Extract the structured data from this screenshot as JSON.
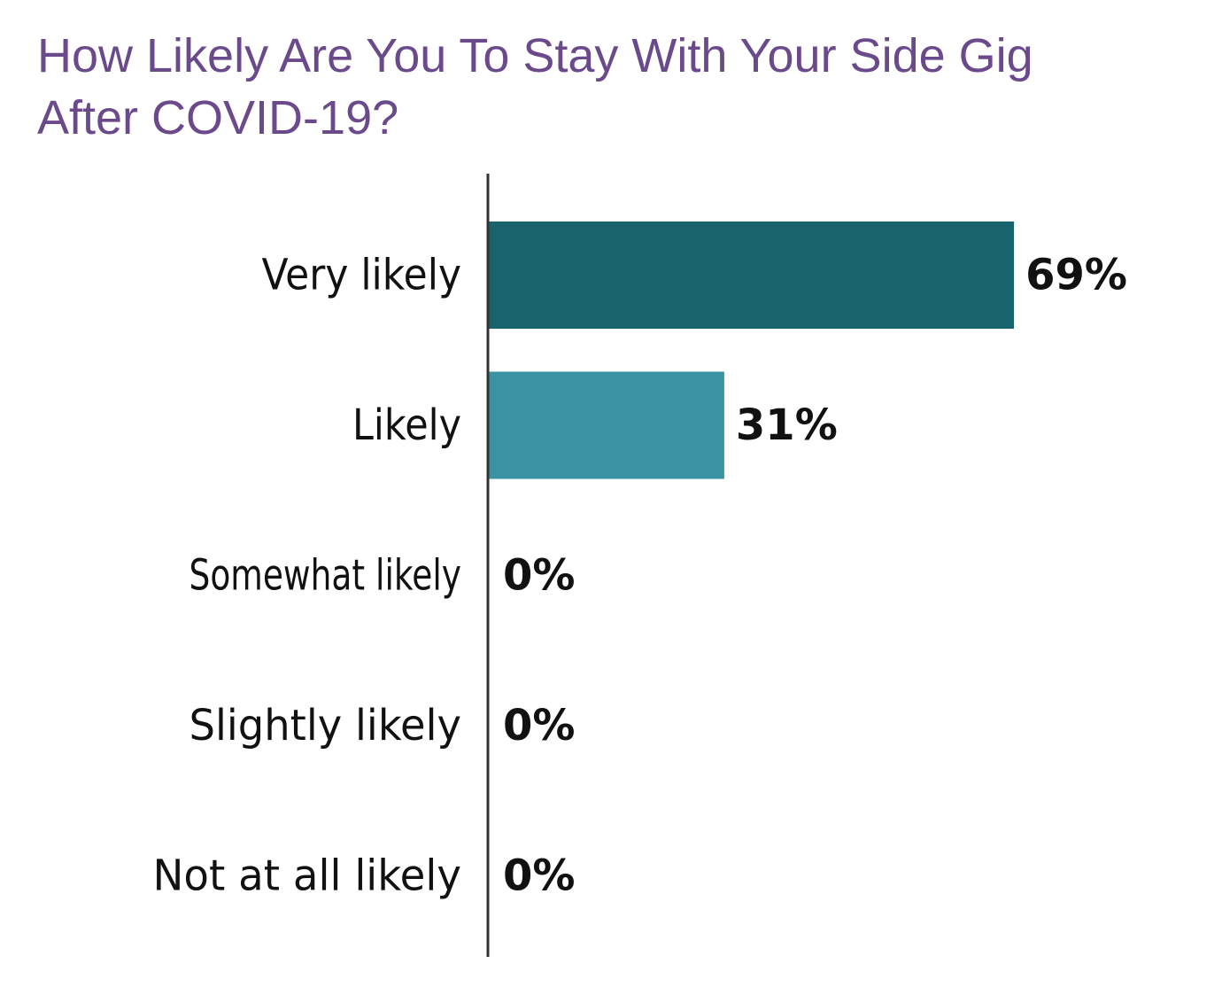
{
  "chart_data": {
    "type": "bar",
    "orientation": "horizontal",
    "title_lines": [
      "How Likely Are You To Stay With Your Side Gig",
      "After COVID-19?"
    ],
    "categories": [
      "Very likely",
      "Likely",
      "Somewhat likely",
      "Slightly likely",
      "Not at all likely"
    ],
    "values": [
      69,
      31,
      0,
      0,
      0
    ],
    "value_labels": [
      "69%",
      "31%",
      "0%",
      "0%",
      "0%"
    ],
    "bar_colors": [
      "#17646d",
      "#3a93a2",
      "#3a93a2",
      "#3a93a2",
      "#3a93a2"
    ],
    "axis_color": "#333333",
    "xlim": [
      0,
      100
    ],
    "grid": false,
    "legend": "none"
  }
}
